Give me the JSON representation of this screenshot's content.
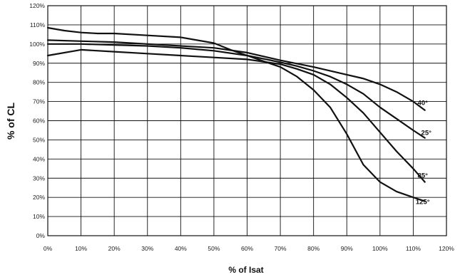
{
  "chart_data": {
    "type": "line",
    "title": "",
    "xlabel": "% of Isat",
    "ylabel": "% of  CL",
    "xlim": [
      0,
      120
    ],
    "ylim": [
      0,
      120
    ],
    "grid": true,
    "x_tick_labels": [
      "0%",
      "10%",
      "20%",
      "30%",
      "40%",
      "50%",
      "60%",
      "70%",
      "80%",
      "90%",
      "100%",
      "110%",
      "120%"
    ],
    "y_tick_labels": [
      "0%",
      "10%",
      "20%",
      "30%",
      "40%",
      "50%",
      "60%",
      "70%",
      "80%",
      "90%",
      "100%",
      "110%",
      "120%"
    ],
    "series": [
      {
        "name": "40°",
        "x": [
          0,
          10,
          20,
          30,
          40,
          50,
          60,
          70,
          80,
          90,
          95,
          100,
          105,
          110,
          113.5
        ],
        "values": [
          102,
          101.5,
          101,
          100,
          99,
          98,
          95.5,
          91.5,
          88,
          84,
          82,
          79,
          75,
          70,
          65.5
        ]
      },
      {
        "name": "25°",
        "x": [
          0,
          10,
          20,
          30,
          40,
          50,
          60,
          70,
          75,
          80,
          85,
          90,
          95,
          100,
          105,
          110,
          113.5
        ],
        "values": [
          100,
          100,
          99.5,
          99,
          98,
          96.5,
          94,
          90.5,
          88.5,
          86,
          83,
          79,
          74,
          67,
          61,
          55,
          51
        ]
      },
      {
        "name": "85°",
        "x": [
          0,
          10,
          20,
          30,
          40,
          50,
          60,
          70,
          75,
          80,
          85,
          90,
          95,
          100,
          105,
          110,
          113.5
        ],
        "values": [
          94,
          97,
          96,
          95,
          94,
          93,
          92,
          89.5,
          87,
          84,
          79,
          72,
          64,
          54,
          44,
          35,
          28
        ]
      },
      {
        "name": "125°",
        "x": [
          0,
          5,
          10,
          15,
          20,
          30,
          40,
          50,
          55,
          60,
          65,
          70,
          75,
          80,
          85,
          90,
          95,
          100,
          105,
          110,
          113.5
        ],
        "values": [
          108.5,
          107,
          106,
          105.5,
          105.5,
          104.5,
          103.5,
          100.5,
          97,
          94,
          91,
          88,
          83,
          76,
          67,
          53,
          37,
          28,
          23,
          20,
          18
        ]
      }
    ]
  }
}
